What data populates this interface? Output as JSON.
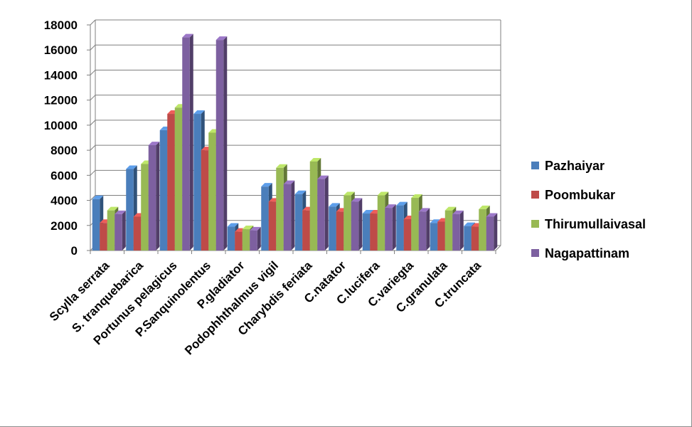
{
  "chart_data": {
    "type": "bar",
    "title": "",
    "xlabel": "",
    "ylabel": "",
    "ylim": [
      0,
      18000
    ],
    "yticks": [
      0,
      2000,
      4000,
      6000,
      8000,
      10000,
      12000,
      14000,
      16000,
      18000
    ],
    "grid": true,
    "legend_position": "right",
    "categories": [
      "Scylla serrata",
      "S. tranquebarica",
      "Portunus pelagicus",
      "P.Sanquinolentus",
      "P.gladiator",
      "Podophhthalmus vigil",
      "Charybdis feriata",
      "C.natator",
      "C.lucifera",
      "C.variegta",
      "C.granulata",
      "C.truncata"
    ],
    "series": [
      {
        "name": "Pazhaiyar",
        "color": "#4a7ebb",
        "values": [
          4100,
          6500,
          9600,
          10900,
          1900,
          5100,
          4500,
          3500,
          2950,
          3600,
          2200,
          1950
        ]
      },
      {
        "name": "Poombukar",
        "color": "#be4b48",
        "values": [
          2200,
          2700,
          10900,
          8000,
          1500,
          3900,
          3200,
          3100,
          2950,
          2500,
          2300,
          1900
        ]
      },
      {
        "name": "Thirumullaivasal",
        "color": "#98b954",
        "values": [
          3200,
          6900,
          11400,
          9400,
          1700,
          6600,
          7100,
          4400,
          4400,
          4200,
          3200,
          3300
        ]
      },
      {
        "name": "Nagapattinam",
        "color": "#7d60a0",
        "values": [
          2900,
          8400,
          17000,
          16800,
          1600,
          5300,
          5700,
          3900,
          3400,
          3100,
          2900,
          2700
        ]
      }
    ]
  }
}
